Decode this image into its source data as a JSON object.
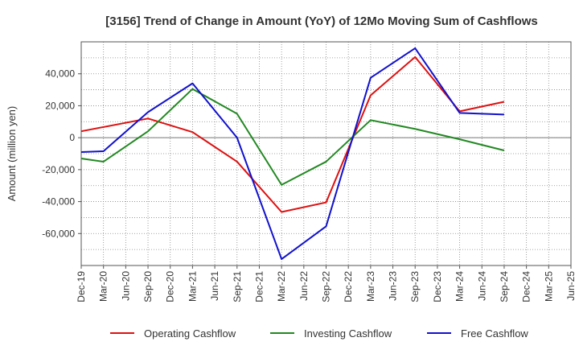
{
  "chart_data": {
    "type": "line",
    "title": "[3156]  Trend of Change in Amount (YoY) of 12Mo Moving Sum of Cashflows",
    "xlabel": "",
    "ylabel": "Amount (million yen)",
    "ylim": [
      -80000,
      60000
    ],
    "yticks": [
      -60000,
      -40000,
      -20000,
      0,
      20000,
      40000
    ],
    "ytick_labels": [
      "-60,000",
      "-40,000",
      "-20,000",
      "0",
      "20,000",
      "40,000"
    ],
    "grid": true,
    "legend_position": "bottom",
    "categories": [
      "Dec-19",
      "Mar-20",
      "Jun-20",
      "Sep-20",
      "Dec-20",
      "Mar-21",
      "Jun-21",
      "Sep-21",
      "Dec-21",
      "Mar-22",
      "Jun-22",
      "Sep-22",
      "Dec-22",
      "Mar-23",
      "Jun-23",
      "Sep-23",
      "Dec-23",
      "Mar-24",
      "Jun-24",
      "Sep-24",
      "Dec-24",
      "Mar-25",
      "Jun-25"
    ],
    "tick_labels": [
      "Dec-19",
      "Mar-20",
      "Jun-20",
      "Sep-20",
      "Dec-20",
      "Mar-21",
      "Jun-21",
      "Sep-21",
      "Dec-21",
      "Mar-22",
      "Jun-22",
      "Sep-22",
      "Dec-22",
      "Mar-23",
      "Jun-23",
      "Sep-23",
      "Dec-23",
      "Mar-24",
      "Jun-24",
      "Sep-24",
      "Dec-24",
      "Mar-25",
      "Jun-25"
    ],
    "series": [
      {
        "name": "Operating Cashflow",
        "color": "#dd1111",
        "x": [
          "Dec-19",
          "Sep-20",
          "Mar-21",
          "Sep-21",
          "Mar-22",
          "Sep-22",
          "Mar-23",
          "Sep-23",
          "Mar-24",
          "Sep-24"
        ],
        "values": [
          4000,
          12000,
          3500,
          -15000,
          -46500,
          -40500,
          26500,
          50500,
          16500,
          22500
        ]
      },
      {
        "name": "Investing Cashflow",
        "color": "#228822",
        "x": [
          "Dec-19",
          "Mar-20",
          "Sep-20",
          "Mar-21",
          "Sep-21",
          "Mar-22",
          "Sep-22",
          "Mar-23",
          "Sep-23",
          "Mar-24",
          "Sep-24"
        ],
        "values": [
          -13000,
          -15000,
          4000,
          30500,
          15000,
          -29500,
          -15000,
          11000,
          5500,
          -1000,
          -8000
        ]
      },
      {
        "name": "Free Cashflow",
        "color": "#1111cc",
        "x": [
          "Dec-19",
          "Mar-20",
          "Sep-20",
          "Mar-21",
          "Sep-21",
          "Mar-22",
          "Sep-22",
          "Mar-23",
          "Sep-23",
          "Mar-24",
          "Sep-24"
        ],
        "values": [
          -9000,
          -8500,
          16000,
          34000,
          0,
          -76000,
          -55500,
          37500,
          56000,
          15500,
          14500
        ]
      }
    ]
  }
}
